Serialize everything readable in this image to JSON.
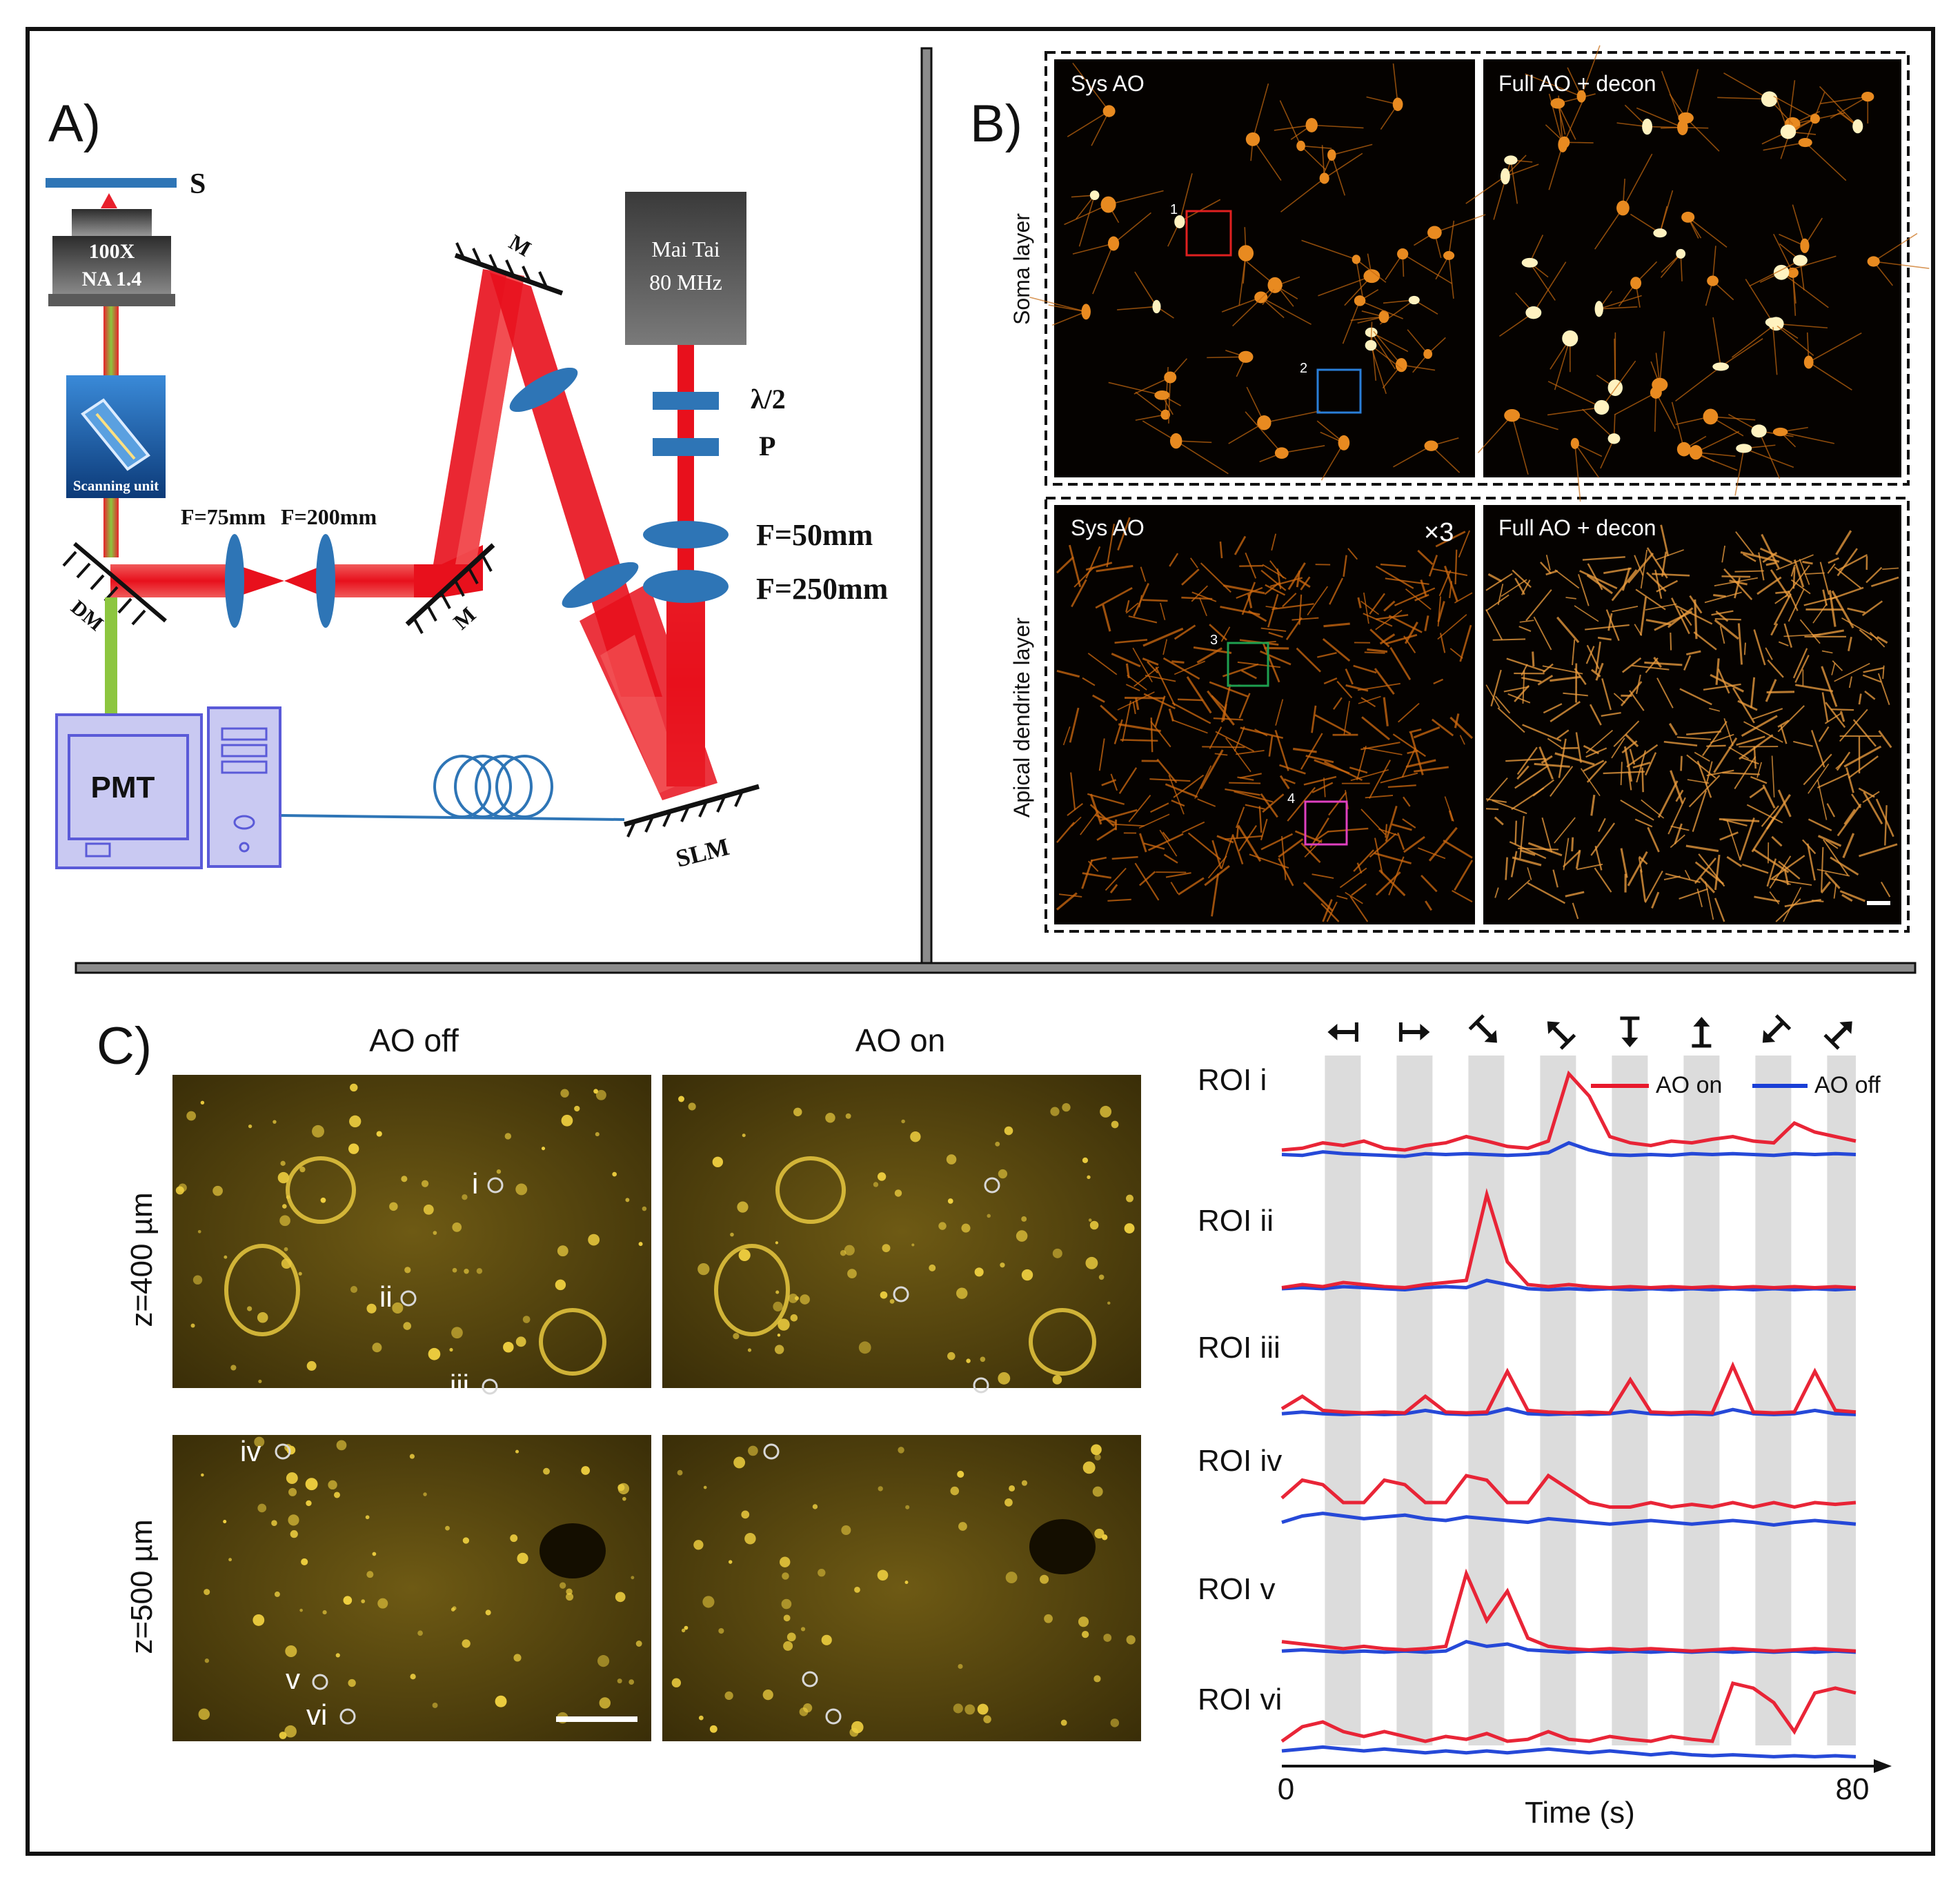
{
  "colors": {
    "beam": "#ee1c24",
    "optic_blue": "#2e75b6",
    "pc_fill": "#c9c9f2",
    "pc_stroke": "#5a5ad8",
    "roi_red": "#e8192c",
    "roi_blue": "#1a3fd6",
    "stim_gray": "#dcdcdc",
    "box_red": "#e02020",
    "box_blue": "#2a7fd8",
    "box_green": "#1ea050",
    "box_magenta": "#e040c0"
  },
  "panel_a": {
    "label": "A)",
    "sample": "S",
    "objective": [
      "100X",
      "NA 1.4"
    ],
    "scanner": "Scanning unit",
    "lens1": "F=75mm",
    "lens2": "F=200mm",
    "dm": "DM",
    "mirror": "M",
    "laser": [
      "Mai Tai",
      "80 MHz"
    ],
    "half_wave": "λ/2",
    "polarizer": "P",
    "lens3": "F=50mm",
    "lens4": "F=250mm",
    "pmt": "PMT",
    "slm": "SLM"
  },
  "panel_b": {
    "label": "B)",
    "rows": [
      "Soma layer",
      "Apical dendrite layer"
    ],
    "col_left": "Sys AO",
    "col_right": "Full AO + decon",
    "gain": "×3",
    "boxes": [
      "1",
      "2",
      "3",
      "4"
    ]
  },
  "panel_c": {
    "label": "C)",
    "col_off": "AO off",
    "col_on": "AO on",
    "depths": [
      "z=400 µm",
      "z=500 µm"
    ],
    "rois_top": [
      "i",
      "ii",
      "iii"
    ],
    "rois_bottom": [
      "iv",
      "v",
      "vi"
    ],
    "stimulus_arrows": [
      "left-arrow-bar-icon",
      "right-arrow-bar-icon",
      "down-right-arrow-icon",
      "up-left-arrow-icon",
      "down-arrow-bar-icon",
      "up-arrow-bar-icon",
      "down-left-arrow-icon",
      "up-right-arrow-icon"
    ]
  },
  "chart_data": {
    "type": "line",
    "x_range": [
      0,
      80
    ],
    "x_ticks": [
      "0",
      "80"
    ],
    "xlabel": "Time (s)",
    "stimulus_on_intervals": [
      [
        6,
        11
      ],
      [
        16,
        21
      ],
      [
        26,
        31
      ],
      [
        36,
        41
      ],
      [
        46,
        51
      ],
      [
        56,
        61
      ],
      [
        66,
        71
      ],
      [
        76,
        80
      ]
    ],
    "legend": [
      "AO on",
      "AO off"
    ],
    "series": [
      {
        "roi": "ROI i",
        "ao_on": [
          0.1,
          0.12,
          0.18,
          0.15,
          0.2,
          0.12,
          0.1,
          0.15,
          0.18,
          0.25,
          0.2,
          0.14,
          0.12,
          0.2,
          0.95,
          0.7,
          0.25,
          0.18,
          0.15,
          0.2,
          0.18,
          0.22,
          0.25,
          0.2,
          0.18,
          0.4,
          0.3,
          0.25,
          0.2
        ],
        "ao_off": [
          0.05,
          0.04,
          0.08,
          0.06,
          0.05,
          0.04,
          0.03,
          0.06,
          0.05,
          0.06,
          0.05,
          0.04,
          0.05,
          0.07,
          0.18,
          0.1,
          0.05,
          0.04,
          0.05,
          0.04,
          0.06,
          0.05,
          0.06,
          0.05,
          0.04,
          0.06,
          0.05,
          0.06,
          0.05
        ]
      },
      {
        "roi": "ROI ii",
        "ao_on": [
          0.05,
          0.08,
          0.06,
          0.1,
          0.08,
          0.06,
          0.05,
          0.08,
          0.1,
          0.12,
          0.95,
          0.3,
          0.08,
          0.06,
          0.08,
          0.06,
          0.05,
          0.06,
          0.05,
          0.06,
          0.05,
          0.06,
          0.05,
          0.06,
          0.05,
          0.06,
          0.05,
          0.06,
          0.05
        ],
        "ao_off": [
          0.04,
          0.05,
          0.04,
          0.06,
          0.05,
          0.04,
          0.03,
          0.05,
          0.06,
          0.05,
          0.12,
          0.08,
          0.04,
          0.03,
          0.04,
          0.03,
          0.04,
          0.03,
          0.04,
          0.03,
          0.04,
          0.03,
          0.04,
          0.03,
          0.04,
          0.03,
          0.04,
          0.03,
          0.04
        ]
      },
      {
        "roi": "ROI iii",
        "ao_on": [
          0.1,
          0.25,
          0.08,
          0.06,
          0.05,
          0.06,
          0.05,
          0.25,
          0.06,
          0.05,
          0.06,
          0.55,
          0.08,
          0.06,
          0.05,
          0.06,
          0.05,
          0.45,
          0.06,
          0.05,
          0.06,
          0.05,
          0.62,
          0.06,
          0.05,
          0.06,
          0.55,
          0.08,
          0.06
        ],
        "ao_off": [
          0.04,
          0.06,
          0.04,
          0.03,
          0.04,
          0.03,
          0.04,
          0.08,
          0.04,
          0.03,
          0.04,
          0.1,
          0.04,
          0.03,
          0.04,
          0.03,
          0.04,
          0.07,
          0.04,
          0.03,
          0.04,
          0.03,
          0.09,
          0.04,
          0.03,
          0.04,
          0.08,
          0.04,
          0.03
        ]
      },
      {
        "roi": "ROI iv",
        "ao_on": [
          0.35,
          0.55,
          0.5,
          0.3,
          0.3,
          0.55,
          0.5,
          0.3,
          0.3,
          0.6,
          0.55,
          0.3,
          0.3,
          0.6,
          0.45,
          0.3,
          0.25,
          0.25,
          0.3,
          0.25,
          0.28,
          0.25,
          0.3,
          0.25,
          0.3,
          0.25,
          0.3,
          0.28,
          0.3
        ],
        "ao_off": [
          0.08,
          0.15,
          0.18,
          0.15,
          0.12,
          0.14,
          0.16,
          0.12,
          0.1,
          0.14,
          0.12,
          0.1,
          0.08,
          0.12,
          0.1,
          0.08,
          0.06,
          0.08,
          0.1,
          0.08,
          0.06,
          0.08,
          0.1,
          0.08,
          0.05,
          0.08,
          0.1,
          0.08,
          0.06
        ]
      },
      {
        "roi": "ROI v",
        "ao_on": [
          0.12,
          0.1,
          0.08,
          0.06,
          0.08,
          0.06,
          0.05,
          0.06,
          0.08,
          0.7,
          0.3,
          0.55,
          0.15,
          0.08,
          0.06,
          0.05,
          0.06,
          0.05,
          0.06,
          0.05,
          0.04,
          0.05,
          0.06,
          0.05,
          0.04,
          0.05,
          0.06,
          0.05,
          0.04
        ],
        "ao_off": [
          0.04,
          0.05,
          0.04,
          0.03,
          0.04,
          0.03,
          0.04,
          0.03,
          0.04,
          0.12,
          0.08,
          0.1,
          0.05,
          0.04,
          0.03,
          0.04,
          0.03,
          0.04,
          0.03,
          0.04,
          0.03,
          0.04,
          0.03,
          0.04,
          0.03,
          0.04,
          0.03,
          0.04,
          0.03
        ]
      },
      {
        "roi": "ROI vi",
        "ao_on": [
          0.2,
          0.35,
          0.4,
          0.3,
          0.25,
          0.3,
          0.25,
          0.2,
          0.25,
          0.22,
          0.28,
          0.2,
          0.22,
          0.3,
          0.22,
          0.2,
          0.25,
          0.22,
          0.2,
          0.25,
          0.22,
          0.2,
          0.8,
          0.75,
          0.6,
          0.3,
          0.7,
          0.75,
          0.7
        ],
        "ao_off": [
          0.1,
          0.12,
          0.14,
          0.12,
          0.1,
          0.12,
          0.1,
          0.08,
          0.1,
          0.08,
          0.1,
          0.08,
          0.1,
          0.12,
          0.1,
          0.08,
          0.1,
          0.08,
          0.06,
          0.08,
          0.06,
          0.05,
          0.06,
          0.05,
          0.04,
          0.05,
          0.04,
          0.05,
          0.04
        ]
      }
    ]
  }
}
